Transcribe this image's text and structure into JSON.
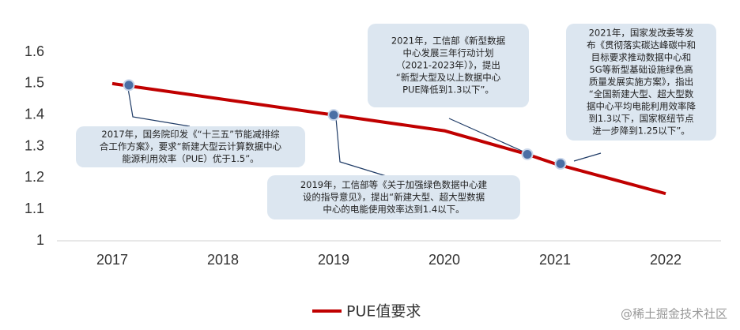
{
  "chart_data": {
    "type": "line",
    "x": [
      2017,
      2019,
      2020,
      2020.75,
      2021,
      2022
    ],
    "series": [
      {
        "name": "PUE值要求",
        "color": "#c00000",
        "values": [
          1.5,
          1.4,
          1.35,
          1.275,
          1.245,
          1.15
        ]
      }
    ],
    "markers": {
      "color": "#4a6fa5",
      "x": [
        2017.15,
        2019,
        2020.75,
        2021.05
      ],
      "values": [
        1.495,
        1.4,
        1.275,
        1.245
      ]
    },
    "xlim": [
      2016.5,
      2022.5
    ],
    "xticks": [
      2017,
      2018,
      2019,
      2020,
      2021,
      2022
    ],
    "ylim": [
      1,
      1.6
    ],
    "yticks": [
      1,
      1.1,
      1.2,
      1.3,
      1.4,
      1.5,
      1.6
    ],
    "annotations": [
      {
        "lines": [
          "2017年，国务院印发《“十三五”节能减排综",
          "合工作方案》，要求“新建大型云计算数据中心",
          "能源利用效率（PUE）优于1.5”。"
        ]
      },
      {
        "lines": [
          "2019年，工信部等《关于加强绿色数据中心建",
          "设的指导意见》，提出“新建大型、超大型数据",
          "中心的电能使用效率达到1.4以下。"
        ]
      },
      {
        "lines": [
          "2021年，工信部《新型数据",
          "中心发展三年行动计划",
          "（2021-2023年）》，提出",
          "“新型大型及以上数据中心",
          "PUE降低到1.3以下”。"
        ]
      },
      {
        "lines": [
          "2021年，国家发改委等发",
          "布《贯彻落实碳达峰碳中和",
          "目标要求推动数据中心和",
          "5G等新型基础设施绿色高",
          "质量发展实施方案》，指出",
          "“全国新建大型、超大型数",
          "据中心平均电能利用效率降",
          "到1.3以下，国家枢纽节点",
          "进一步降到1.25以下”。"
        ]
      }
    ]
  },
  "watermark": "@稀土掘金技术社区"
}
